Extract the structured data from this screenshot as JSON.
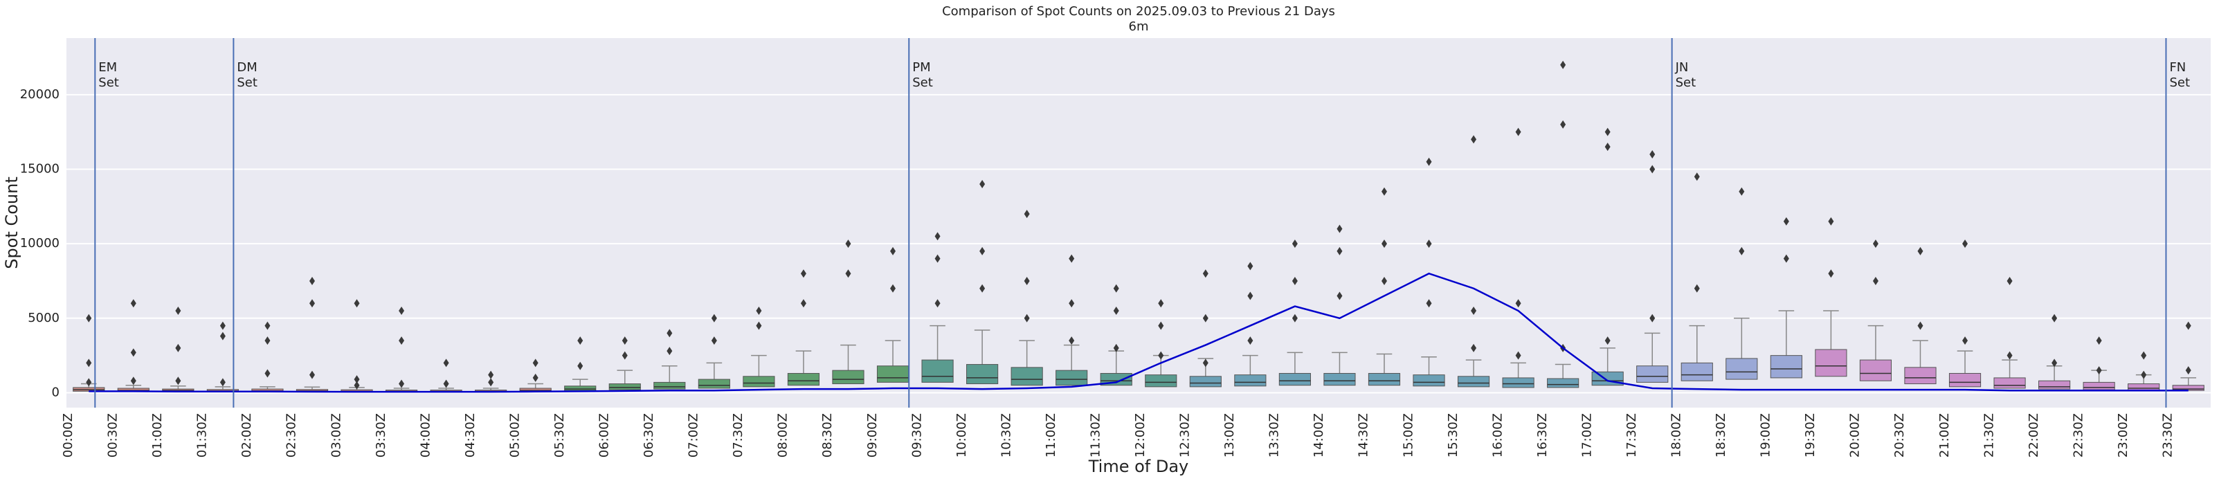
{
  "chart_data": {
    "type": "box",
    "title": "Comparison of Spot Counts on 2025.09.03 to Previous 21 Days",
    "subtitle": "6m",
    "xlabel": "Time of Day",
    "ylabel": "Spot Count",
    "categories": [
      "00:00Z",
      "00:30Z",
      "01:00Z",
      "01:30Z",
      "02:00Z",
      "02:30Z",
      "03:00Z",
      "03:30Z",
      "04:00Z",
      "04:30Z",
      "05:00Z",
      "05:30Z",
      "06:00Z",
      "06:30Z",
      "07:00Z",
      "07:30Z",
      "08:00Z",
      "08:30Z",
      "09:00Z",
      "09:30Z",
      "10:00Z",
      "10:30Z",
      "11:00Z",
      "11:30Z",
      "12:00Z",
      "12:30Z",
      "13:00Z",
      "13:30Z",
      "14:00Z",
      "14:30Z",
      "15:00Z",
      "15:30Z",
      "16:00Z",
      "16:30Z",
      "17:00Z",
      "17:30Z",
      "18:00Z",
      "18:30Z",
      "19:00Z",
      "19:30Z",
      "20:00Z",
      "20:30Z",
      "21:00Z",
      "21:30Z",
      "22:00Z",
      "22:30Z",
      "23:00Z",
      "23:30Z"
    ],
    "boxes": [
      {
        "q1": 100,
        "median": 200,
        "q3": 350,
        "whishi": 600,
        "outliers": [
          5000,
          2000,
          700
        ]
      },
      {
        "q1": 100,
        "median": 150,
        "q3": 300,
        "whishi": 500,
        "outliers": [
          6000,
          2700,
          800
        ]
      },
      {
        "q1": 80,
        "median": 150,
        "q3": 250,
        "whishi": 450,
        "outliers": [
          5500,
          3000,
          800
        ]
      },
      {
        "q1": 80,
        "median": 120,
        "q3": 220,
        "whishi": 400,
        "outliers": [
          4500,
          3800,
          700
        ]
      },
      {
        "q1": 80,
        "median": 120,
        "q3": 250,
        "whishi": 400,
        "outliers": [
          3500,
          4500,
          1300
        ]
      },
      {
        "q1": 70,
        "median": 120,
        "q3": 220,
        "whishi": 380,
        "outliers": [
          7500,
          6000,
          1200
        ]
      },
      {
        "q1": 60,
        "median": 100,
        "q3": 200,
        "whishi": 350,
        "outliers": [
          6000,
          900,
          500
        ]
      },
      {
        "q1": 60,
        "median": 100,
        "q3": 180,
        "whishi": 300,
        "outliers": [
          5500,
          3500,
          600
        ]
      },
      {
        "q1": 60,
        "median": 100,
        "q3": 180,
        "whishi": 300,
        "outliers": [
          2000,
          600
        ]
      },
      {
        "q1": 60,
        "median": 100,
        "q3": 180,
        "whishi": 300,
        "outliers": [
          1200,
          700
        ]
      },
      {
        "q1": 80,
        "median": 150,
        "q3": 300,
        "whishi": 600,
        "outliers": [
          2000,
          1000
        ]
      },
      {
        "q1": 150,
        "median": 250,
        "q3": 450,
        "whishi": 900,
        "outliers": [
          3500,
          1800
        ]
      },
      {
        "q1": 200,
        "median": 350,
        "q3": 600,
        "whishi": 1500,
        "outliers": [
          3500,
          2500
        ]
      },
      {
        "q1": 250,
        "median": 400,
        "q3": 700,
        "whishi": 1800,
        "outliers": [
          4000,
          2800
        ]
      },
      {
        "q1": 300,
        "median": 500,
        "q3": 900,
        "whishi": 2000,
        "outliers": [
          5000,
          3500
        ]
      },
      {
        "q1": 400,
        "median": 650,
        "q3": 1100,
        "whishi": 2500,
        "outliers": [
          5500,
          4500
        ]
      },
      {
        "q1": 500,
        "median": 800,
        "q3": 1300,
        "whishi": 2800,
        "outliers": [
          8000,
          6000
        ]
      },
      {
        "q1": 600,
        "median": 900,
        "q3": 1500,
        "whishi": 3200,
        "outliers": [
          10000,
          8000
        ]
      },
      {
        "q1": 700,
        "median": 1000,
        "q3": 1800,
        "whishi": 3500,
        "outliers": [
          9500,
          7000
        ]
      },
      {
        "q1": 700,
        "median": 1100,
        "q3": 2200,
        "whishi": 4500,
        "outliers": [
          10500,
          9000,
          6000
        ]
      },
      {
        "q1": 600,
        "median": 1000,
        "q3": 1900,
        "whishi": 4200,
        "outliers": [
          14000,
          9500,
          7000
        ]
      },
      {
        "q1": 500,
        "median": 900,
        "q3": 1700,
        "whishi": 3500,
        "outliers": [
          12000,
          7500,
          5000
        ]
      },
      {
        "q1": 500,
        "median": 900,
        "q3": 1500,
        "whishi": 3200,
        "outliers": [
          9000,
          6000,
          3500
        ]
      },
      {
        "q1": 500,
        "median": 800,
        "q3": 1300,
        "whishi": 2800,
        "outliers": [
          7000,
          5500,
          3000
        ]
      },
      {
        "q1": 400,
        "median": 700,
        "q3": 1200,
        "whishi": 2500,
        "outliers": [
          6000,
          4500,
          2500
        ]
      },
      {
        "q1": 400,
        "median": 650,
        "q3": 1100,
        "whishi": 2300,
        "outliers": [
          8000,
          5000,
          2000
        ]
      },
      {
        "q1": 450,
        "median": 700,
        "q3": 1200,
        "whishi": 2500,
        "outliers": [
          8500,
          6500,
          3500
        ]
      },
      {
        "q1": 500,
        "median": 800,
        "q3": 1300,
        "whishi": 2700,
        "outliers": [
          10000,
          7500,
          5000
        ]
      },
      {
        "q1": 500,
        "median": 800,
        "q3": 1300,
        "whishi": 2700,
        "outliers": [
          11000,
          9500,
          6500
        ]
      },
      {
        "q1": 500,
        "median": 800,
        "q3": 1300,
        "whishi": 2600,
        "outliers": [
          13500,
          10000,
          7500
        ]
      },
      {
        "q1": 450,
        "median": 700,
        "q3": 1200,
        "whishi": 2400,
        "outliers": [
          15500,
          10000,
          6000
        ]
      },
      {
        "q1": 400,
        "median": 650,
        "q3": 1100,
        "whishi": 2200,
        "outliers": [
          17000,
          5500,
          3000
        ]
      },
      {
        "q1": 350,
        "median": 600,
        "q3": 1000,
        "whishi": 2000,
        "outliers": [
          17500,
          6000,
          2500
        ]
      },
      {
        "q1": 350,
        "median": 550,
        "q3": 950,
        "whishi": 1900,
        "outliers": [
          22000,
          18000,
          3000
        ]
      },
      {
        "q1": 500,
        "median": 800,
        "q3": 1400,
        "whishi": 3000,
        "outliers": [
          17500,
          16500,
          3500
        ]
      },
      {
        "q1": 700,
        "median": 1100,
        "q3": 1800,
        "whishi": 4000,
        "outliers": [
          16000,
          15000,
          5000
        ]
      },
      {
        "q1": 800,
        "median": 1200,
        "q3": 2000,
        "whishi": 4500,
        "outliers": [
          14500,
          7000
        ]
      },
      {
        "q1": 900,
        "median": 1400,
        "q3": 2300,
        "whishi": 5000,
        "outliers": [
          13500,
          9500
        ]
      },
      {
        "q1": 1000,
        "median": 1600,
        "q3": 2500,
        "whishi": 5500,
        "outliers": [
          11500,
          9000
        ]
      },
      {
        "q1": 1100,
        "median": 1800,
        "q3": 2900,
        "whishi": 5500,
        "outliers": [
          11500,
          8000
        ]
      },
      {
        "q1": 800,
        "median": 1300,
        "q3": 2200,
        "whishi": 4500,
        "outliers": [
          10000,
          7500
        ]
      },
      {
        "q1": 600,
        "median": 1000,
        "q3": 1700,
        "whishi": 3500,
        "outliers": [
          9500,
          4500
        ]
      },
      {
        "q1": 400,
        "median": 700,
        "q3": 1300,
        "whishi": 2800,
        "outliers": [
          10000,
          3500
        ]
      },
      {
        "q1": 300,
        "median": 500,
        "q3": 1000,
        "whishi": 2200,
        "outliers": [
          7500,
          2500
        ]
      },
      {
        "q1": 250,
        "median": 400,
        "q3": 800,
        "whishi": 1800,
        "outliers": [
          5000,
          2000
        ]
      },
      {
        "q1": 200,
        "median": 350,
        "q3": 700,
        "whishi": 1500,
        "outliers": [
          3500,
          1500
        ]
      },
      {
        "q1": 150,
        "median": 300,
        "q3": 600,
        "whishi": 1200,
        "outliers": [
          2500,
          1200
        ]
      },
      {
        "q1": 150,
        "median": 250,
        "q3": 500,
        "whishi": 1000,
        "outliers": [
          4500,
          1500
        ]
      }
    ],
    "box_colors": [
      "#c98a86",
      "#c98a86",
      "#c98a86",
      "#c98a86",
      "#c98a86",
      "#c98a86",
      "#c98a86",
      "#c98a86",
      "#c98a86",
      "#c98a86",
      "#c98a86",
      "#5f9e6e",
      "#5f9e6e",
      "#5f9e6e",
      "#5f9e6e",
      "#5f9e6e",
      "#5f9e6e",
      "#5f9e6e",
      "#5f9e6e",
      "#5a9b8f",
      "#5a9b8f",
      "#5a9b8f",
      "#5a9b8f",
      "#5a9b8f",
      "#5a9b8f",
      "#6a9fb5",
      "#6a9fb5",
      "#6a9fb5",
      "#6a9fb5",
      "#6a9fb5",
      "#6a9fb5",
      "#6a9fb5",
      "#6a9fb5",
      "#6a9fb5",
      "#6a9fb5",
      "#9aa8d6",
      "#9aa8d6",
      "#9aa8d6",
      "#9aa8d6",
      "#c98fc9",
      "#c98fc9",
      "#c98fc9",
      "#c98fc9",
      "#c98fc9",
      "#c98fc9",
      "#c98fc9",
      "#c98fc9",
      "#c98fc9"
    ],
    "line": {
      "color": "#0000cc",
      "values": [
        100,
        100,
        80,
        80,
        80,
        70,
        60,
        60,
        60,
        60,
        80,
        100,
        120,
        150,
        150,
        200,
        250,
        250,
        300,
        300,
        250,
        300,
        400,
        700,
        2000,
        3200,
        4500,
        5800,
        5000,
        6500,
        8000,
        7000,
        5500,
        3000,
        800,
        300,
        250,
        200,
        200,
        200,
        200,
        200,
        200,
        150,
        150,
        150,
        150,
        150
      ]
    },
    "markers": [
      {
        "x": 0.32,
        "lines": [
          "EM",
          "Set"
        ]
      },
      {
        "x": 1.87,
        "lines": [
          "DM",
          "Set"
        ]
      },
      {
        "x": 9.43,
        "lines": [
          "PM",
          "Set"
        ]
      },
      {
        "x": 17.97,
        "lines": [
          "JN",
          "Set"
        ]
      },
      {
        "x": 23.5,
        "lines": [
          "FN",
          "Set"
        ]
      }
    ],
    "marker_color": "#4a6fb5",
    "xlim": [
      0,
      24
    ],
    "ylim": [
      -1000,
      23800
    ],
    "yticks": [
      0,
      5000,
      10000,
      15000,
      20000
    ],
    "grid": true
  }
}
